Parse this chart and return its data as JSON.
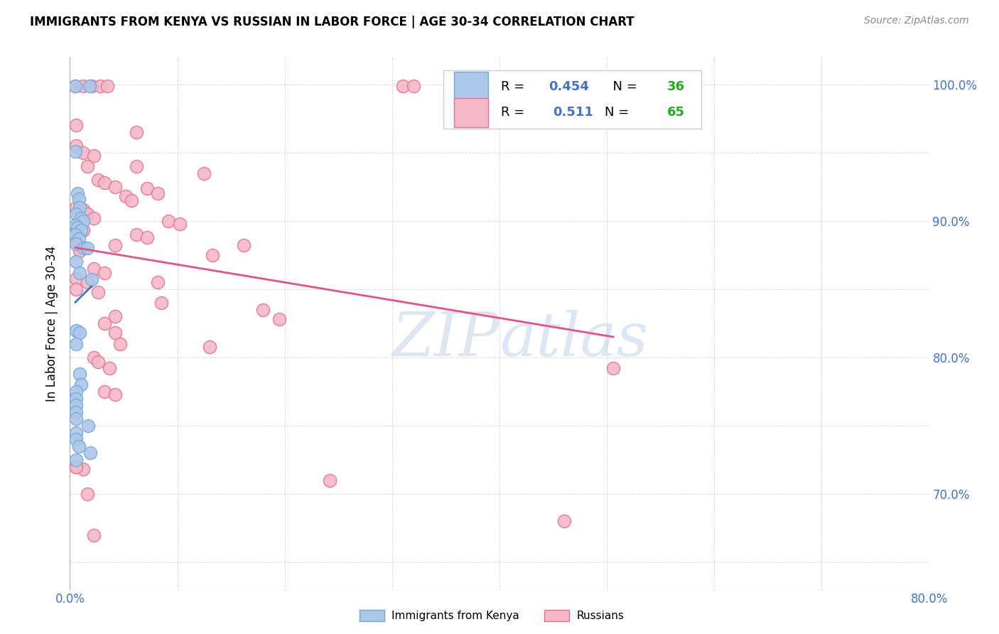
{
  "title": "IMMIGRANTS FROM KENYA VS RUSSIAN IN LABOR FORCE | AGE 30-34 CORRELATION CHART",
  "source": "Source: ZipAtlas.com",
  "ylabel": "In Labor Force | Age 30-34",
  "xlim": [
    0.0,
    0.8
  ],
  "ylim": [
    0.63,
    1.02
  ],
  "xtick_positions": [
    0.0,
    0.1,
    0.2,
    0.3,
    0.4,
    0.5,
    0.6,
    0.7,
    0.8
  ],
  "xticklabels": [
    "0.0%",
    "",
    "",
    "",
    "",
    "",
    "",
    "",
    "80.0%"
  ],
  "ytick_positions": [
    0.65,
    0.7,
    0.75,
    0.8,
    0.85,
    0.9,
    0.95,
    1.0
  ],
  "ytick_labels_right": [
    "",
    "70.0%",
    "",
    "80.0%",
    "",
    "90.0%",
    "",
    "100.0%"
  ],
  "kenya_R": "0.454",
  "kenya_N": "36",
  "russian_R": "0.511",
  "russian_N": "65",
  "kenya_color": "#aec6e8",
  "kenya_edge_color": "#6aaed6",
  "russian_color": "#f4b8c8",
  "russian_edge_color": "#e87090",
  "kenya_line_color": "#4472c4",
  "russian_line_color": "#e8508a",
  "legend_label_kenya": "Immigrants from Kenya",
  "legend_label_russian": "Russians",
  "n_color": "#22aa22",
  "r_val_color": "#4472c4",
  "watermark_zip": "ZIP",
  "watermark_atlas": "atlas",
  "kenya_points": [
    [
      0.005,
      0.999
    ],
    [
      0.018,
      0.999
    ],
    [
      0.005,
      0.951
    ],
    [
      0.007,
      0.92
    ],
    [
      0.008,
      0.916
    ],
    [
      0.009,
      0.91
    ],
    [
      0.006,
      0.905
    ],
    [
      0.01,
      0.902
    ],
    [
      0.012,
      0.9
    ],
    [
      0.005,
      0.897
    ],
    [
      0.007,
      0.895
    ],
    [
      0.01,
      0.893
    ],
    [
      0.005,
      0.89
    ],
    [
      0.008,
      0.887
    ],
    [
      0.006,
      0.883
    ],
    [
      0.013,
      0.88
    ],
    [
      0.016,
      0.88
    ],
    [
      0.006,
      0.87
    ],
    [
      0.009,
      0.862
    ],
    [
      0.02,
      0.857
    ],
    [
      0.006,
      0.82
    ],
    [
      0.009,
      0.818
    ],
    [
      0.006,
      0.81
    ],
    [
      0.009,
      0.788
    ],
    [
      0.01,
      0.78
    ],
    [
      0.006,
      0.775
    ],
    [
      0.006,
      0.77
    ],
    [
      0.006,
      0.765
    ],
    [
      0.006,
      0.76
    ],
    [
      0.006,
      0.755
    ],
    [
      0.017,
      0.75
    ],
    [
      0.006,
      0.745
    ],
    [
      0.006,
      0.74
    ],
    [
      0.008,
      0.735
    ],
    [
      0.019,
      0.73
    ],
    [
      0.006,
      0.725
    ]
  ],
  "russian_points": [
    [
      0.005,
      0.999
    ],
    [
      0.012,
      0.999
    ],
    [
      0.02,
      0.999
    ],
    [
      0.028,
      0.999
    ],
    [
      0.035,
      0.999
    ],
    [
      0.31,
      0.999
    ],
    [
      0.32,
      0.999
    ],
    [
      0.006,
      0.97
    ],
    [
      0.062,
      0.965
    ],
    [
      0.006,
      0.955
    ],
    [
      0.012,
      0.95
    ],
    [
      0.022,
      0.948
    ],
    [
      0.016,
      0.94
    ],
    [
      0.062,
      0.94
    ],
    [
      0.125,
      0.935
    ],
    [
      0.026,
      0.93
    ],
    [
      0.032,
      0.928
    ],
    [
      0.042,
      0.925
    ],
    [
      0.072,
      0.924
    ],
    [
      0.082,
      0.92
    ],
    [
      0.052,
      0.918
    ],
    [
      0.057,
      0.915
    ],
    [
      0.006,
      0.91
    ],
    [
      0.012,
      0.908
    ],
    [
      0.016,
      0.905
    ],
    [
      0.022,
      0.902
    ],
    [
      0.092,
      0.9
    ],
    [
      0.102,
      0.898
    ],
    [
      0.006,
      0.895
    ],
    [
      0.012,
      0.893
    ],
    [
      0.062,
      0.89
    ],
    [
      0.072,
      0.888
    ],
    [
      0.006,
      0.885
    ],
    [
      0.042,
      0.882
    ],
    [
      0.162,
      0.882
    ],
    [
      0.009,
      0.878
    ],
    [
      0.133,
      0.875
    ],
    [
      0.022,
      0.865
    ],
    [
      0.032,
      0.862
    ],
    [
      0.006,
      0.858
    ],
    [
      0.016,
      0.855
    ],
    [
      0.082,
      0.855
    ],
    [
      0.026,
      0.848
    ],
    [
      0.042,
      0.83
    ],
    [
      0.032,
      0.825
    ],
    [
      0.042,
      0.818
    ],
    [
      0.047,
      0.81
    ],
    [
      0.022,
      0.8
    ],
    [
      0.026,
      0.797
    ],
    [
      0.037,
      0.792
    ],
    [
      0.032,
      0.775
    ],
    [
      0.042,
      0.773
    ],
    [
      0.006,
      0.72
    ],
    [
      0.012,
      0.718
    ],
    [
      0.242,
      0.71
    ],
    [
      0.016,
      0.7
    ],
    [
      0.006,
      0.72
    ],
    [
      0.506,
      0.792
    ],
    [
      0.022,
      0.67
    ],
    [
      0.006,
      0.85
    ],
    [
      0.085,
      0.84
    ],
    [
      0.18,
      0.835
    ],
    [
      0.195,
      0.828
    ],
    [
      0.13,
      0.808
    ],
    [
      0.46,
      0.68
    ]
  ]
}
